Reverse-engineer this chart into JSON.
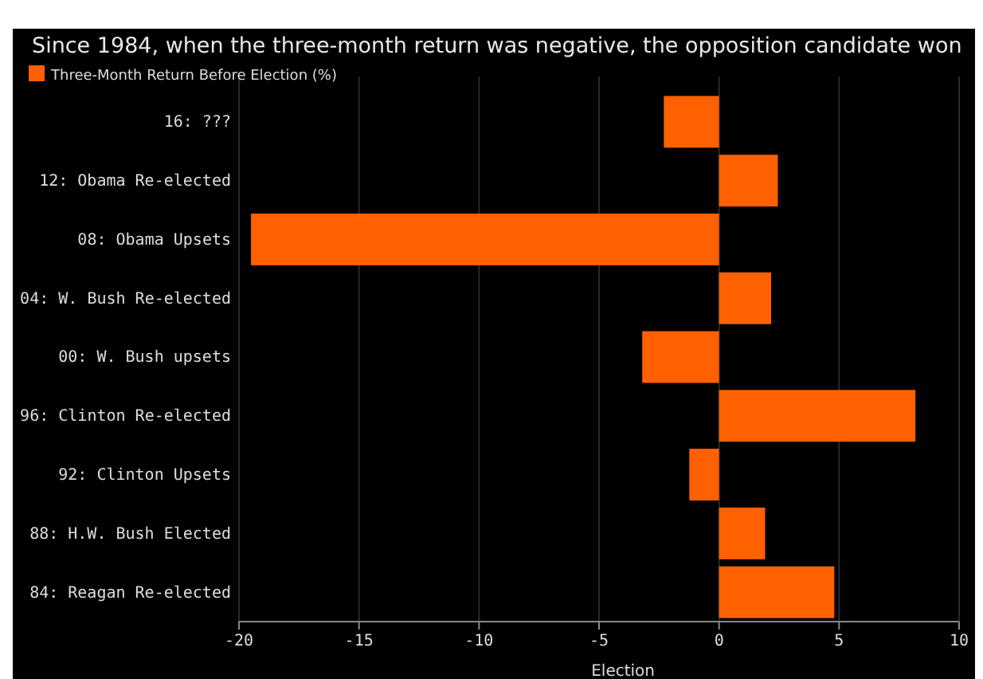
{
  "chart_data": {
    "type": "bar",
    "orientation": "horizontal",
    "subtitle": "Since 1984, when the three-month return was negative, the opposition candidate won",
    "xlabel": "Election",
    "categories": [
      "16: ???",
      "12: Obama Re-elected",
      "08: Obama Upsets",
      "04: W. Bush Re-elected",
      "00: W. Bush upsets",
      "96: Clinton Re-elected",
      "92: Clinton Upsets",
      "88: H.W. Bush Elected",
      "84: Reagan Re-elected"
    ],
    "series": [
      {
        "name": "Three-Month Return Before Election (%)",
        "color": "#ff6000",
        "values": [
          -2.3,
          2.45,
          -19.5,
          2.17,
          -3.2,
          8.18,
          -1.24,
          1.92,
          4.8
        ]
      }
    ],
    "xlim": [
      -20,
      10
    ],
    "xticks": [
      -20,
      -15,
      -10,
      -5,
      0,
      5,
      10
    ],
    "grid": "x",
    "legend": "top left"
  }
}
